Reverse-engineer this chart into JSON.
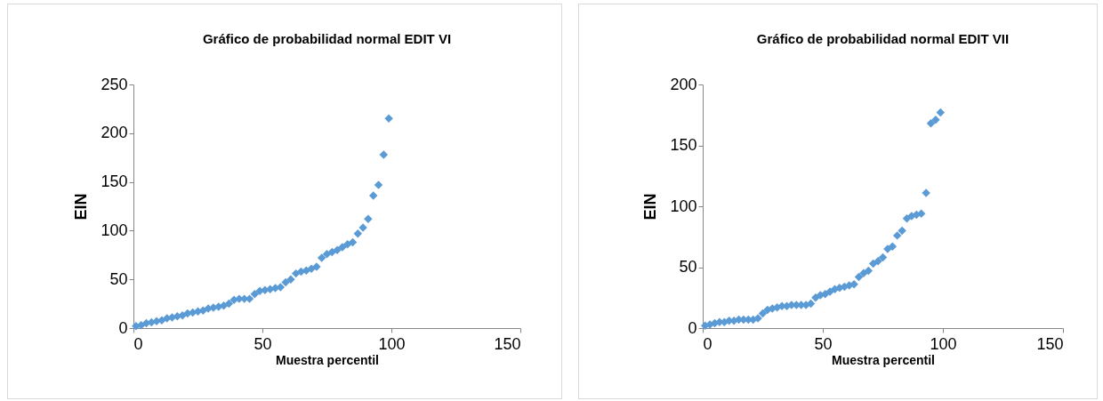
{
  "chart_data": [
    {
      "type": "scatter",
      "title": "Gráfico de probabilidad normal EDIT VI",
      "xlabel": "Muestra percentil",
      "ylabel": "EIN",
      "marker": "diamond",
      "grid": false,
      "legend": false,
      "xlim": [
        0,
        150
      ],
      "xticks": [
        0,
        50,
        100,
        150
      ],
      "ylim": [
        0,
        250
      ],
      "yticks": [
        0,
        50,
        100,
        150,
        200,
        250
      ],
      "x": [
        1,
        3,
        5,
        7,
        9,
        11,
        13,
        15,
        17,
        19,
        21,
        23,
        25,
        27,
        29,
        31,
        33,
        35,
        37,
        39,
        41,
        43,
        45,
        47,
        49,
        51,
        53,
        55,
        57,
        59,
        61,
        63,
        65,
        67,
        69,
        71,
        73,
        75,
        77,
        79,
        81,
        83,
        85,
        87,
        89,
        91,
        93,
        95,
        97,
        99
      ],
      "series": [
        {
          "color": "#5b9bd5",
          "values": [
            2,
            3,
            5,
            6,
            7,
            8,
            10,
            11,
            12,
            13,
            15,
            16,
            17,
            18,
            20,
            21,
            22,
            23,
            25,
            29,
            30,
            30,
            30,
            35,
            38,
            39,
            40,
            41,
            42,
            47,
            50,
            56,
            58,
            59,
            61,
            63,
            72,
            76,
            78,
            80,
            83,
            86,
            88,
            97,
            103,
            112,
            136,
            147,
            178,
            215
          ]
        }
      ]
    },
    {
      "type": "scatter",
      "title": "Gráfico de probabilidad normal EDIT VII",
      "xlabel": "Muestra percentil",
      "ylabel": "EIN",
      "marker": "diamond",
      "grid": false,
      "legend": false,
      "xlim": [
        0,
        150
      ],
      "xticks": [
        0,
        50,
        100,
        150
      ],
      "ylim": [
        0,
        200
      ],
      "yticks": [
        0,
        50,
        100,
        150,
        200
      ],
      "x": [
        1,
        3,
        5,
        7,
        9,
        11,
        13,
        15,
        17,
        19,
        21,
        23,
        25,
        27,
        29,
        31,
        33,
        35,
        37,
        39,
        41,
        43,
        45,
        47,
        49,
        51,
        53,
        55,
        57,
        59,
        61,
        63,
        65,
        67,
        69,
        71,
        73,
        75,
        77,
        79,
        81,
        83,
        85,
        87,
        89,
        91,
        93,
        95,
        97,
        99
      ],
      "series": [
        {
          "color": "#5b9bd5",
          "values": [
            2,
            3,
            4,
            5,
            5,
            6,
            6,
            7,
            7,
            7,
            7,
            8,
            12,
            15,
            16,
            17,
            18,
            18,
            19,
            19,
            19,
            19,
            20,
            25,
            27,
            28,
            30,
            32,
            33,
            34,
            35,
            36,
            42,
            45,
            47,
            53,
            55,
            58,
            65,
            67,
            76,
            80,
            90,
            92,
            93,
            94,
            111,
            168,
            171,
            177
          ]
        }
      ]
    }
  ]
}
